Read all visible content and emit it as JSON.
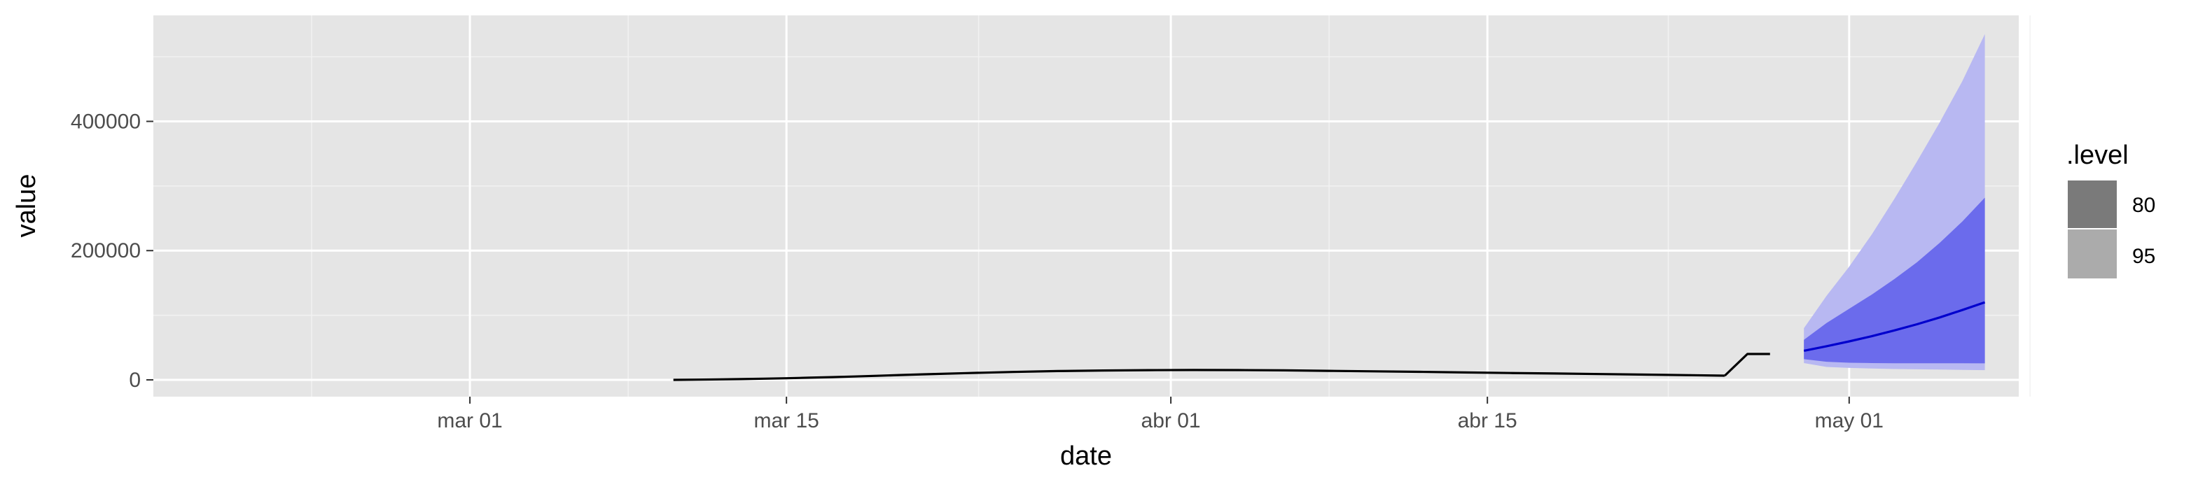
{
  "chart_data": {
    "type": "line",
    "xlabel": "date",
    "ylabel": "value",
    "x_ticks": [
      {
        "label": "mar 01",
        "day": 0
      },
      {
        "label": "mar 15",
        "day": 14
      },
      {
        "label": "abr 01",
        "day": 31
      },
      {
        "label": "abr 15",
        "day": 45
      },
      {
        "label": "may 01",
        "day": 61
      }
    ],
    "x_range_days": [
      -14,
      68.5
    ],
    "x_day0": "2020-03-01",
    "y_ticks": [
      {
        "label": "0",
        "value": 0
      },
      {
        "label": "200000",
        "value": 200000
      },
      {
        "label": "400000",
        "value": 400000
      }
    ],
    "ylim": [
      -26000,
      564000
    ],
    "series": [
      {
        "name": "history",
        "color": "#000000",
        "x": [
          9,
          10,
          11,
          12,
          13,
          14,
          15,
          16,
          17,
          18,
          19,
          20,
          22,
          24,
          26,
          28,
          30,
          32,
          34,
          36,
          38,
          40,
          42,
          44,
          46,
          48,
          50,
          52,
          54,
          55.5
        ],
        "y": [
          0,
          300,
          700,
          1200,
          1800,
          2500,
          3300,
          4200,
          5200,
          6300,
          7400,
          8500,
          10500,
          12200,
          13600,
          14500,
          15000,
          15200,
          15100,
          14700,
          14000,
          13200,
          12400,
          11500,
          10600,
          9800,
          9000,
          8100,
          7200,
          6500
        ]
      },
      {
        "name": "history-jump",
        "color": "#000000",
        "x": [
          55.5,
          56.5,
          57.5
        ],
        "y": [
          6500,
          40000,
          40000
        ]
      },
      {
        "name": "forecast",
        "color": "#0000cd",
        "x": [
          59,
          60,
          61,
          62,
          63,
          64,
          65,
          66,
          67
        ],
        "y": [
          45000,
          52000,
          59500,
          67500,
          76500,
          86000,
          96500,
          108000,
          120000
        ]
      }
    ],
    "intervals": [
      {
        "level": "95",
        "color": "#b8b8f2",
        "x": [
          59,
          60,
          61,
          62,
          63,
          64,
          65,
          66,
          67
        ],
        "lower": [
          26000,
          20000,
          18500,
          17500,
          16800,
          16300,
          15900,
          15500,
          15000
        ],
        "upper": [
          80000,
          130000,
          175000,
          225000,
          280000,
          338000,
          398000,
          462000,
          535000
        ]
      },
      {
        "level": "80",
        "color": "#6b6bec",
        "x": [
          59,
          60,
          61,
          62,
          63,
          64,
          65,
          66,
          67
        ],
        "lower": [
          32000,
          28000,
          26500,
          26000,
          25800,
          25700,
          25600,
          25600,
          25500
        ],
        "upper": [
          62000,
          88000,
          110000,
          132000,
          156000,
          182000,
          212000,
          245000,
          282000
        ]
      }
    ],
    "legend": {
      "title": ".level",
      "position": "right",
      "items": [
        {
          "label": "80",
          "color": "#7a7a7a"
        },
        {
          "label": "95",
          "color": "#ababab"
        }
      ]
    },
    "grid": true,
    "panel_background": "#e5e5e5"
  }
}
